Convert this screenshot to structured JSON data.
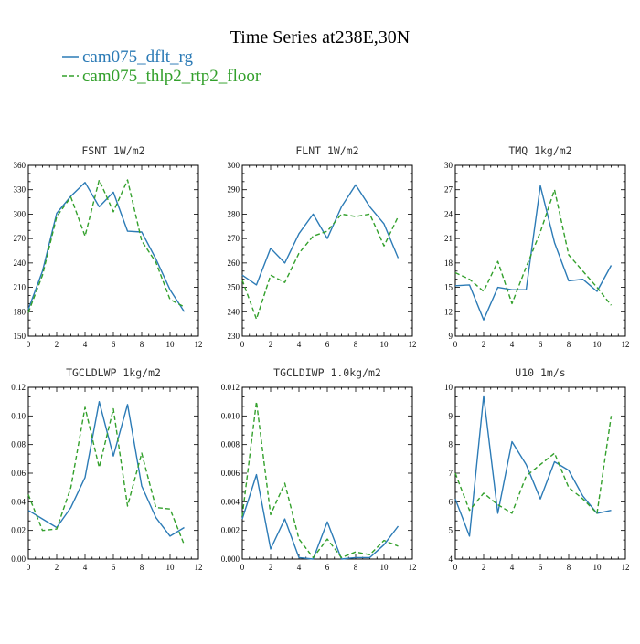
{
  "figure": {
    "title": "Time Series at238E,30N",
    "legend": [
      {
        "name": "cam075_dflt_rg",
        "color": "#2c7bb6",
        "dash": "solid"
      },
      {
        "name": "cam075_thlp2_rtp2_floor",
        "color": "#33a02c",
        "dash": "dashed"
      }
    ]
  },
  "chart_data": [
    {
      "type": "line",
      "title": "FSNT   1W/m2",
      "xlim": [
        0,
        12
      ],
      "xticks": [
        0,
        2,
        4,
        6,
        8,
        10,
        12
      ],
      "ylim": [
        150,
        360
      ],
      "yticks": [
        150,
        180,
        210,
        240,
        270,
        300,
        330,
        360
      ],
      "ytick_labels": [
        "150",
        "180",
        "210",
        "240",
        "270",
        "300",
        "330",
        "360"
      ],
      "x": [
        0,
        1,
        2,
        3,
        4,
        5,
        6,
        7,
        8,
        9,
        10,
        11
      ],
      "series": [
        {
          "name": "cam075_dflt_rg",
          "values": [
            183,
            230,
            301,
            322,
            339,
            309,
            327,
            279,
            278,
            245,
            207,
            180
          ]
        },
        {
          "name": "cam075_thlp2_rtp2_floor",
          "values": [
            179,
            225,
            297,
            321,
            273,
            342,
            303,
            342,
            267,
            241,
            195,
            186
          ]
        }
      ]
    },
    {
      "type": "line",
      "title": "FLNT   1W/m2",
      "xlim": [
        0,
        12
      ],
      "xticks": [
        0,
        2,
        4,
        6,
        8,
        10,
        12
      ],
      "ylim": [
        230,
        300
      ],
      "yticks": [
        230,
        240,
        250,
        260,
        270,
        280,
        290,
        300
      ],
      "ytick_labels": [
        "230",
        "240",
        "250",
        "260",
        "270",
        "280",
        "290",
        "300"
      ],
      "x": [
        0,
        1,
        2,
        3,
        4,
        5,
        6,
        7,
        8,
        9,
        10,
        11
      ],
      "series": [
        {
          "name": "cam075_dflt_rg",
          "values": [
            255,
            251,
            266,
            260,
            272,
            280,
            270,
            283,
            292,
            283,
            276,
            262
          ]
        },
        {
          "name": "cam075_thlp2_rtp2_floor",
          "values": [
            253,
            237,
            255,
            252,
            264,
            271,
            273,
            280,
            279,
            280,
            267,
            279
          ]
        }
      ]
    },
    {
      "type": "line",
      "title": "TMQ   1kg/m2",
      "xlim": [
        0,
        12
      ],
      "xticks": [
        0,
        2,
        4,
        6,
        8,
        10,
        12
      ],
      "ylim": [
        9,
        30
      ],
      "yticks": [
        9,
        12,
        15,
        18,
        21,
        24,
        27,
        30
      ],
      "ytick_labels": [
        "9",
        "12",
        "15",
        "18",
        "21",
        "24",
        "27",
        "30"
      ],
      "x": [
        0,
        1,
        2,
        3,
        4,
        5,
        6,
        7,
        8,
        9,
        10,
        11
      ],
      "series": [
        {
          "name": "cam075_dflt_rg",
          "values": [
            15.2,
            15.3,
            11.0,
            15.0,
            14.7,
            14.7,
            27.5,
            20.5,
            15.8,
            16.0,
            14.5,
            17.7
          ]
        },
        {
          "name": "cam075_thlp2_rtp2_floor",
          "values": [
            16.8,
            16.0,
            14.5,
            18.2,
            13.0,
            17.5,
            21.8,
            27.0,
            19.0,
            17.0,
            15.0,
            12.8
          ]
        }
      ]
    },
    {
      "type": "line",
      "title": "TGCLDLWP   1kg/m2",
      "xlim": [
        0,
        12
      ],
      "xticks": [
        0,
        2,
        4,
        6,
        8,
        10,
        12
      ],
      "ylim": [
        0,
        0.12
      ],
      "yticks": [
        0,
        0.02,
        0.04,
        0.06,
        0.08,
        0.1,
        0.12
      ],
      "ytick_labels": [
        "0.00",
        "0.02",
        "0.04",
        "0.06",
        "0.08",
        "0.10",
        "0.12"
      ],
      "x": [
        0,
        1,
        2,
        3,
        4,
        5,
        6,
        7,
        8,
        9,
        10,
        11
      ],
      "series": [
        {
          "name": "cam075_dflt_rg",
          "values": [
            0.034,
            0.028,
            0.022,
            0.036,
            0.057,
            0.11,
            0.072,
            0.108,
            0.051,
            0.029,
            0.016,
            0.022
          ]
        },
        {
          "name": "cam075_thlp2_rtp2_floor",
          "values": [
            0.045,
            0.02,
            0.021,
            0.05,
            0.106,
            0.064,
            0.105,
            0.037,
            0.074,
            0.036,
            0.035,
            0.01
          ]
        }
      ]
    },
    {
      "type": "line",
      "title": "TGCLDIWP   1.0kg/m2",
      "xlim": [
        0,
        12
      ],
      "xticks": [
        0,
        2,
        4,
        6,
        8,
        10,
        12
      ],
      "ylim": [
        0,
        0.012
      ],
      "yticks": [
        0,
        0.002,
        0.004,
        0.006,
        0.008,
        0.01,
        0.012
      ],
      "ytick_labels": [
        "0.000",
        "0.002",
        "0.004",
        "0.006",
        "0.008",
        "0.010",
        "0.012"
      ],
      "x": [
        0,
        1,
        2,
        3,
        4,
        5,
        6,
        7,
        8,
        9,
        10,
        11
      ],
      "series": [
        {
          "name": "cam075_dflt_rg",
          "values": [
            0.0028,
            0.0059,
            0.0007,
            0.0028,
            0.0001,
            0.0,
            0.0026,
            0.0,
            0.0001,
            0.0001,
            0.001,
            0.0023
          ]
        },
        {
          "name": "cam075_thlp2_rtp2_floor",
          "values": [
            0.003,
            0.011,
            0.0031,
            0.0053,
            0.0014,
            0.0001,
            0.0014,
            0.0001,
            0.0005,
            0.0003,
            0.0013,
            0.0009
          ]
        }
      ]
    },
    {
      "type": "line",
      "title": "U10   1m/s",
      "xlim": [
        0,
        12
      ],
      "xticks": [
        0,
        2,
        4,
        6,
        8,
        10,
        12
      ],
      "ylim": [
        4,
        10
      ],
      "yticks": [
        4,
        5,
        6,
        7,
        8,
        9,
        10
      ],
      "ytick_labels": [
        "4",
        "5",
        "6",
        "7",
        "8",
        "9",
        "10"
      ],
      "x": [
        0,
        1,
        2,
        3,
        4,
        5,
        6,
        7,
        8,
        9,
        10,
        11
      ],
      "series": [
        {
          "name": "cam075_dflt_rg",
          "values": [
            6.1,
            4.8,
            9.7,
            5.6,
            8.1,
            7.3,
            6.1,
            7.4,
            7.1,
            6.2,
            5.6,
            5.7
          ]
        },
        {
          "name": "cam075_thlp2_rtp2_floor",
          "values": [
            7.0,
            5.7,
            6.3,
            5.9,
            5.6,
            6.9,
            7.3,
            7.7,
            6.5,
            6.1,
            5.6,
            9.0
          ]
        }
      ]
    }
  ]
}
